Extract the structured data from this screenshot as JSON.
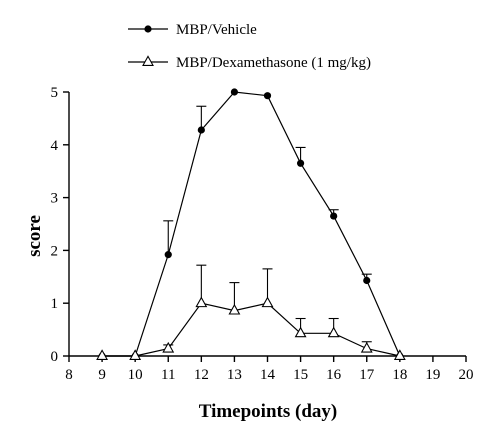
{
  "chart_data": {
    "type": "line",
    "title": "",
    "xlabel": "Timepoints (day)",
    "ylabel": "score",
    "xlim": [
      8,
      20
    ],
    "ylim": [
      0,
      5
    ],
    "xticks": [
      "8",
      "9",
      "10",
      "11",
      "12",
      "13",
      "14",
      "15",
      "16",
      "17",
      "18",
      "19",
      "20"
    ],
    "yticks": [
      "0",
      "1",
      "2",
      "3",
      "4",
      "5"
    ],
    "legend_position": "top",
    "grid": false,
    "series": [
      {
        "name": "MBP/Vehicle",
        "marker": "filled-circle",
        "x": [
          9,
          10,
          11,
          12,
          13,
          14,
          15,
          16,
          17,
          18
        ],
        "values": [
          0,
          0,
          1.92,
          4.28,
          5.0,
          4.93,
          3.65,
          2.65,
          1.43,
          0
        ],
        "error": [
          0,
          0,
          0.64,
          0.45,
          0,
          0,
          0.3,
          0.12,
          0.12,
          0
        ]
      },
      {
        "name": "MBP/Dexamethasone (1 mg/kg)",
        "marker": "open-triangle",
        "x": [
          9,
          10,
          11,
          12,
          13,
          14,
          15,
          16,
          17,
          18
        ],
        "values": [
          0,
          0,
          0.14,
          1.0,
          0.86,
          1.0,
          0.43,
          0.43,
          0.14,
          0
        ],
        "error": [
          0,
          0,
          0.07,
          0.72,
          0.53,
          0.65,
          0.28,
          0.28,
          0.13,
          0
        ]
      }
    ]
  }
}
